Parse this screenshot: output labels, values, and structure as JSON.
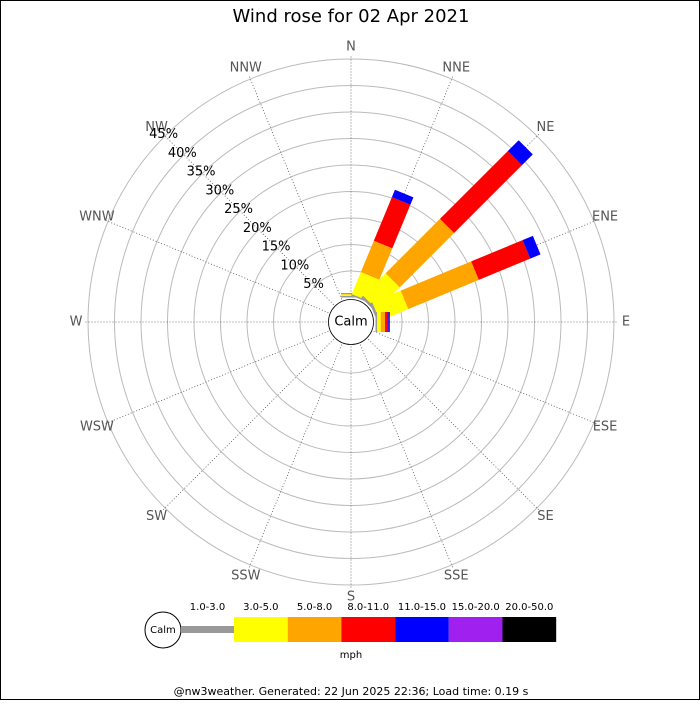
{
  "chart_data": {
    "type": "wind_rose",
    "title": "Wind rose for 02 Apr 2021",
    "directions": [
      "N",
      "NNE",
      "NE",
      "ENE",
      "E",
      "ESE",
      "SE",
      "SSE",
      "S",
      "SSW",
      "SW",
      "WSW",
      "W",
      "WNW",
      "NW",
      "NNW"
    ],
    "center_label": "Calm",
    "ylim": [
      0,
      45
    ],
    "yticks": [
      {
        "value": 5,
        "label": "5%"
      },
      {
        "value": 10,
        "label": "10%"
      },
      {
        "value": 15,
        "label": "15%"
      },
      {
        "value": 20,
        "label": "20%"
      },
      {
        "value": 25,
        "label": "25%"
      },
      {
        "value": 30,
        "label": "30%"
      },
      {
        "value": 35,
        "label": "35%"
      },
      {
        "value": 40,
        "label": "40%"
      },
      {
        "value": 45,
        "label": "45%"
      }
    ],
    "series": [
      {
        "name": "1.0-3.0",
        "color": "#999999",
        "values": [
          0.3,
          0.3,
          0.5,
          0.5,
          0.3,
          0,
          0,
          0,
          0,
          0,
          0,
          0,
          0,
          0,
          0,
          0
        ]
      },
      {
        "name": "3.0-5.0",
        "color": "#ffff00",
        "values": [
          0.3,
          4.5,
          6,
          5.8,
          0.7,
          0,
          0,
          0,
          0,
          0,
          0,
          0,
          0,
          0,
          0,
          0
        ]
      },
      {
        "name": "5.0-8.0",
        "color": "#ffa500",
        "values": [
          0.1,
          6.4,
          14.5,
          14.4,
          0.8,
          0,
          0,
          0,
          0,
          0,
          0,
          0,
          0,
          0,
          0,
          0
        ]
      },
      {
        "name": "8.0-11.0",
        "color": "#ff0000",
        "values": [
          0.1,
          8.9,
          18.1,
          10.5,
          0.6,
          0,
          0,
          0,
          0,
          0,
          0,
          0,
          0,
          0,
          0,
          0
        ]
      },
      {
        "name": "11.0-15.0",
        "color": "#0000ff",
        "values": [
          0,
          1.5,
          2.9,
          2.1,
          0.3,
          0,
          0,
          0,
          0,
          0,
          0,
          0,
          0,
          0,
          0,
          0
        ]
      },
      {
        "name": "15.0-20.0",
        "color": "#a020f0",
        "values": [
          0,
          0,
          0,
          0,
          0,
          0,
          0,
          0,
          0,
          0,
          0,
          0,
          0,
          0,
          0,
          0
        ]
      },
      {
        "name": "20.0-50.0",
        "color": "#000000",
        "values": [
          0,
          0,
          0,
          0,
          0,
          0,
          0,
          0,
          0,
          0,
          0,
          0,
          0,
          0,
          0,
          0
        ]
      }
    ],
    "unit": "mph",
    "footer": "@nw3weather. Generated: 22 Jun 2025 22:36; Load time: 0.19 s"
  }
}
